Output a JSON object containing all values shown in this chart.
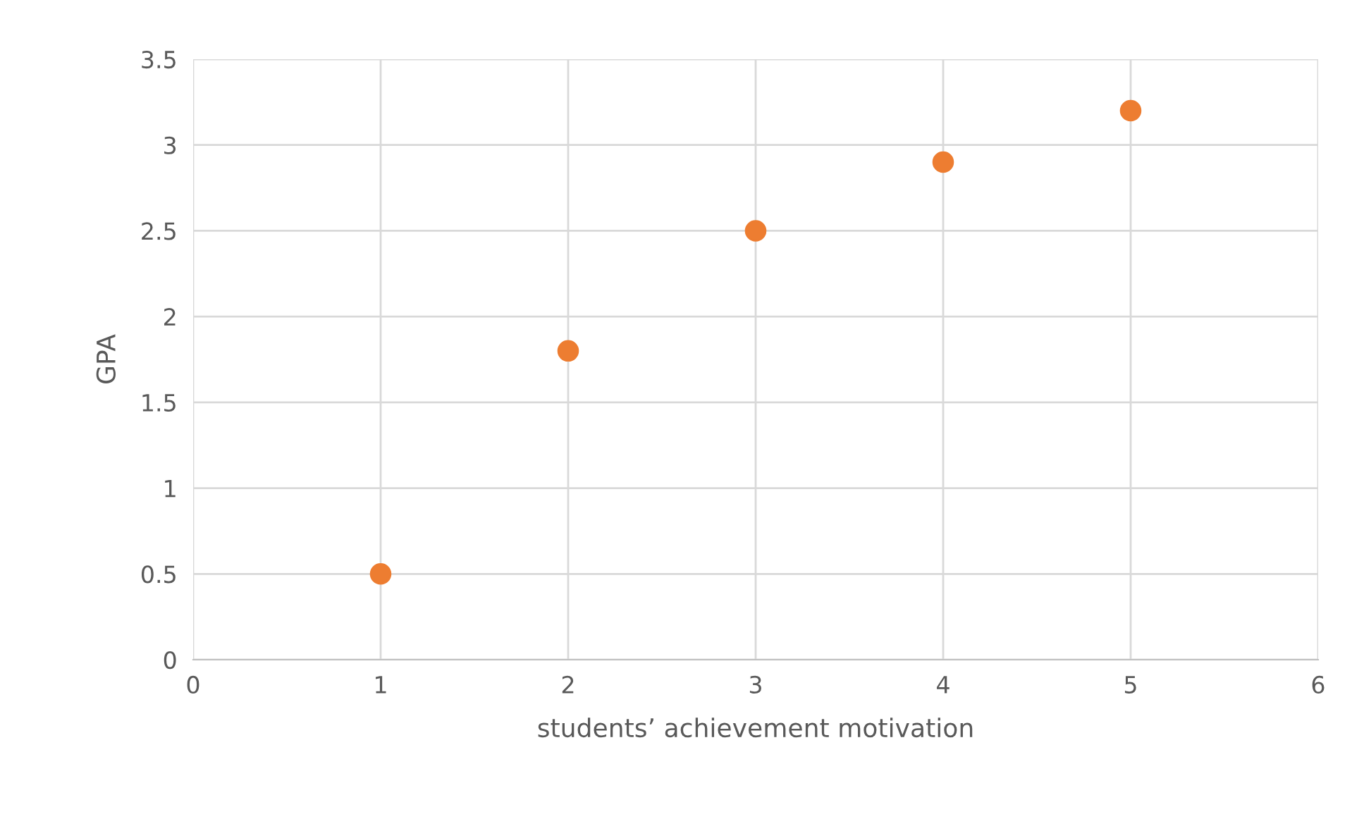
{
  "chart_data": {
    "type": "scatter",
    "xlabel": "students’ achievement motivation",
    "ylabel": "GPA",
    "x": [
      1,
      2,
      3,
      4,
      5
    ],
    "series": [
      {
        "color": "#ed7d31",
        "values": [
          0.5,
          1.8,
          2.5,
          2.9,
          3.2
        ]
      }
    ],
    "xlim": [
      0,
      6
    ],
    "xticks": [
      0,
      1,
      2,
      3,
      4,
      5,
      6
    ],
    "ylim": [
      0,
      3.5
    ],
    "yticks": [
      0,
      0.5,
      1,
      1.5,
      2,
      2.5,
      3,
      3.5
    ],
    "grid": true,
    "marker": "circle",
    "legend": false
  }
}
